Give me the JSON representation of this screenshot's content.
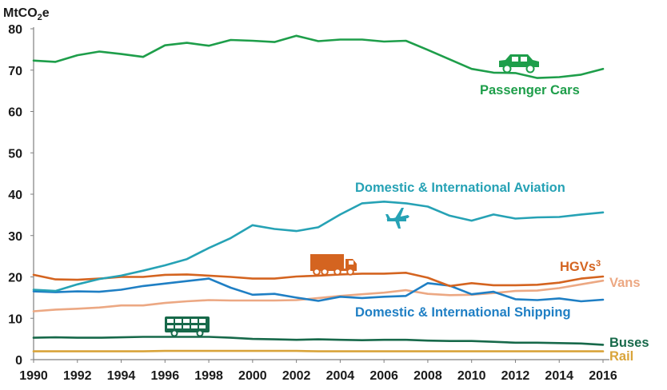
{
  "chart_data": {
    "type": "line",
    "ylabel": "MtCO2e",
    "ylabel_parts": {
      "main": "MtCO",
      "sub": "2",
      "tail": "e"
    },
    "ylim": [
      0,
      80
    ],
    "yticks": [
      "0",
      "10",
      "20",
      "30",
      "40",
      "50",
      "60",
      "70",
      "80"
    ],
    "xlim": [
      1990,
      2016
    ],
    "xticks": [
      "1990",
      "1992",
      "1994",
      "1996",
      "1998",
      "2000",
      "2002",
      "2004",
      "2006",
      "2008",
      "2010",
      "2012",
      "2014",
      "2016"
    ],
    "grid": false,
    "legend": "inline labels next to lines",
    "x": [
      1990,
      1991,
      1992,
      1993,
      1994,
      1995,
      1996,
      1997,
      1998,
      1999,
      2000,
      2001,
      2002,
      2003,
      2004,
      2005,
      2006,
      2007,
      2008,
      2009,
      2010,
      2011,
      2012,
      2013,
      2014,
      2015,
      2016
    ],
    "series": [
      {
        "key": "cars",
        "name": "Passenger Cars",
        "color": "#1e9e4a",
        "icon": "car-icon",
        "values": [
          72.3,
          72.0,
          73.6,
          74.5,
          73.9,
          73.2,
          76.0,
          76.6,
          75.9,
          77.3,
          77.1,
          76.8,
          78.3,
          77.0,
          77.4,
          77.4,
          76.9,
          77.1,
          74.9,
          72.6,
          70.3,
          69.4,
          69.3,
          68.1,
          68.3,
          68.9,
          70.3
        ]
      },
      {
        "key": "aviation",
        "name": "Domestic & International Aviation",
        "color": "#26a2b5",
        "icon": "airplane-icon",
        "values": [
          16.9,
          16.6,
          18.2,
          19.5,
          20.3,
          21.5,
          22.8,
          24.3,
          27.0,
          29.4,
          32.5,
          31.6,
          31.1,
          32.0,
          35.1,
          37.8,
          38.2,
          37.8,
          37.0,
          34.8,
          33.6,
          35.1,
          34.1,
          34.4,
          34.5,
          35.1,
          35.6
        ]
      },
      {
        "key": "hgvs",
        "name": "HGVs",
        "name_sup": "3",
        "color": "#d46420",
        "icon": "truck-icon",
        "values": [
          20.5,
          19.4,
          19.3,
          19.6,
          20.0,
          20.0,
          20.5,
          20.6,
          20.3,
          20.0,
          19.6,
          19.6,
          20.1,
          20.3,
          20.6,
          20.8,
          20.8,
          21.0,
          19.8,
          17.8,
          18.5,
          18.0,
          18.0,
          18.1,
          18.6,
          19.6,
          20.1
        ]
      },
      {
        "key": "vans",
        "name": "Vans",
        "color": "#eca883",
        "icon": "",
        "values": [
          11.7,
          12.1,
          12.3,
          12.6,
          13.1,
          13.1,
          13.7,
          14.1,
          14.4,
          14.3,
          14.3,
          14.3,
          14.4,
          14.9,
          15.4,
          15.8,
          16.2,
          16.8,
          15.9,
          15.6,
          15.7,
          16.1,
          16.6,
          16.7,
          17.3,
          18.2,
          19.1
        ]
      },
      {
        "key": "shipping",
        "name": "Domestic & International Shipping",
        "color": "#1f7fc4",
        "icon": "",
        "values": [
          16.5,
          16.3,
          16.5,
          16.4,
          16.9,
          17.8,
          18.4,
          19.0,
          19.6,
          17.4,
          15.7,
          15.9,
          15.0,
          14.2,
          15.2,
          14.9,
          15.2,
          15.4,
          18.5,
          17.9,
          15.8,
          16.4,
          14.6,
          14.4,
          14.8,
          14.1,
          14.5
        ]
      },
      {
        "key": "buses",
        "name": "Buses",
        "color": "#17694a",
        "icon": "bus-icon",
        "values": [
          5.3,
          5.4,
          5.3,
          5.3,
          5.4,
          5.5,
          5.5,
          5.5,
          5.5,
          5.3,
          5.0,
          4.9,
          4.8,
          4.9,
          4.8,
          4.7,
          4.8,
          4.8,
          4.6,
          4.5,
          4.5,
          4.3,
          4.1,
          4.1,
          4.0,
          3.9,
          3.6
        ]
      },
      {
        "key": "rail",
        "name": "Rail",
        "color": "#d9a43a",
        "icon": "",
        "values": [
          2.0,
          2.0,
          2.0,
          2.0,
          2.0,
          2.0,
          2.1,
          2.1,
          2.1,
          2.1,
          2.1,
          2.1,
          2.1,
          2.0,
          2.0,
          2.0,
          2.0,
          2.0,
          2.0,
          2.0,
          2.0,
          2.0,
          2.0,
          2.0,
          2.0,
          2.0,
          2.0
        ]
      }
    ],
    "colors": {
      "axis": "#7f7f7f",
      "text": "#1a1a1a"
    }
  }
}
